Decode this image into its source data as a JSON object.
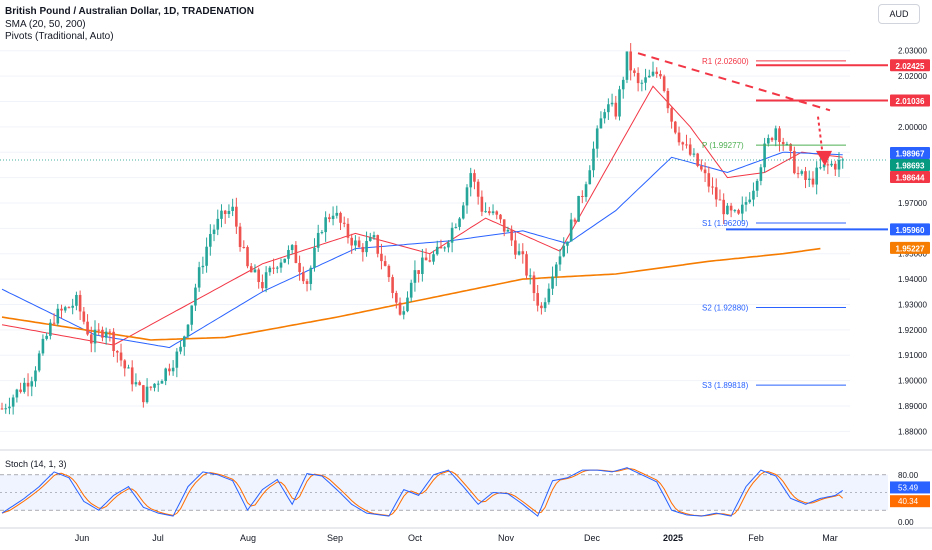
{
  "header": {
    "title": "British Pound / Australian Dollar, 1D, TRADENATION",
    "line2": "SMA (20, 50, 200)",
    "line3": "Pivots (Traditional, Auto)",
    "currency": "AUD"
  },
  "stoch_label": "Stoch (14, 1, 3)",
  "colors": {
    "up": "#26a69a",
    "down": "#ef5350",
    "sma20": "#f23645",
    "sma50": "#2962ff",
    "sma200": "#f57c00",
    "pivot_p": "#4caf50",
    "pivot_r": "#f23645",
    "pivot_s": "#2962ff",
    "stoch_k": "#2962ff",
    "stoch_d": "#ff6d00",
    "grid": "#f0f3fa"
  },
  "chart_data": {
    "type": "candlestick",
    "x_labels": [
      "Jun",
      "Jul",
      "Aug",
      "Sep",
      "Oct",
      "Nov",
      "Dec",
      "2025",
      "Feb",
      "Mar"
    ],
    "y_ticks": [
      "2.03000",
      "2.02000",
      "2.01000",
      "2.00000",
      "1.99000",
      "1.98000",
      "1.97000",
      "1.96000",
      "1.95000",
      "1.94000",
      "1.93000",
      "1.92000",
      "1.91000",
      "1.90000",
      "1.89000",
      "1.88000"
    ],
    "ylim": [
      1.875,
      2.035
    ],
    "price_labels": [
      {
        "text": "2.02425",
        "value": 2.02425,
        "color": "#f23645"
      },
      {
        "text": "2.01036",
        "value": 2.01036,
        "color": "#f23645"
      },
      {
        "text": "1.98967",
        "value": 1.98967,
        "color": "#2962ff"
      },
      {
        "text": "1.98693",
        "value": 1.98693,
        "color": "#089981"
      },
      {
        "text": "1.98644",
        "value": 1.98644,
        "color": "#f23645"
      },
      {
        "text": "1.95960",
        "value": 1.9596,
        "color": "#2962ff"
      },
      {
        "text": "1.95227",
        "value": 1.95227,
        "color": "#f57c00"
      }
    ],
    "pivots": [
      {
        "label": "R1 (2.02600)",
        "value": 2.026,
        "color": "#f23645"
      },
      {
        "label": "P (1.99277)",
        "value": 1.99277,
        "color": "#4caf50"
      },
      {
        "label": "S1 (1.96209)",
        "value": 1.96209,
        "color": "#2962ff"
      },
      {
        "label": "S2 (1.92880)",
        "value": 1.9288,
        "color": "#2962ff"
      },
      {
        "label": "S3 (1.89818)",
        "value": 1.89818,
        "color": "#2962ff"
      }
    ],
    "anchors": {
      "start": "2024-05-13",
      "pts": [
        [
          0,
          1.889
        ],
        [
          8,
          1.902
        ],
        [
          14,
          1.925
        ],
        [
          20,
          1.931
        ],
        [
          24,
          1.916
        ],
        [
          28,
          1.921
        ],
        [
          33,
          1.905
        ],
        [
          38,
          1.894
        ],
        [
          43,
          1.902
        ],
        [
          48,
          1.912
        ],
        [
          52,
          1.937
        ],
        [
          56,
          1.958
        ],
        [
          60,
          1.966
        ],
        [
          62,
          1.967
        ],
        [
          63,
          1.961
        ],
        [
          66,
          1.944
        ],
        [
          70,
          1.938
        ],
        [
          74,
          1.947
        ],
        [
          78,
          1.951
        ],
        [
          82,
          1.939
        ],
        [
          86,
          1.961
        ],
        [
          89,
          1.967
        ],
        [
          92,
          1.959
        ],
        [
          96,
          1.952
        ],
        [
          100,
          1.955
        ],
        [
          104,
          1.941
        ],
        [
          107,
          1.925
        ],
        [
          110,
          1.941
        ],
        [
          114,
          1.947
        ],
        [
          118,
          1.951
        ],
        [
          123,
          1.966
        ],
        [
          126,
          1.982
        ],
        [
          129,
          1.968
        ],
        [
          133,
          1.964
        ],
        [
          136,
          1.958
        ],
        [
          140,
          1.947
        ],
        [
          143,
          1.935
        ],
        [
          145,
          1.928
        ],
        [
          148,
          1.944
        ],
        [
          152,
          1.957
        ],
        [
          156,
          1.974
        ],
        [
          159,
          1.991
        ],
        [
          162,
          2.008
        ],
        [
          165,
          2.006
        ],
        [
          168,
          2.027
        ],
        [
          171,
          2.016
        ],
        [
          174,
          2.019
        ],
        [
          177,
          2.022
        ],
        [
          180,
          2.003
        ],
        [
          183,
          1.993
        ],
        [
          186,
          1.987
        ],
        [
          189,
          1.98
        ],
        [
          192,
          1.972
        ],
        [
          195,
          1.966
        ],
        [
          198,
          1.964
        ],
        [
          202,
          1.977
        ],
        [
          205,
          1.991
        ],
        [
          208,
          2.0
        ],
        [
          211,
          1.991
        ],
        [
          214,
          1.981
        ],
        [
          217,
          1.978
        ],
        [
          220,
          1.983
        ],
        [
          223,
          1.985
        ],
        [
          226,
          1.986
        ]
      ]
    },
    "sma20": [
      [
        0,
        1.922
      ],
      [
        30,
        1.914
      ],
      [
        50,
        1.93
      ],
      [
        70,
        1.946
      ],
      [
        95,
        1.958
      ],
      [
        115,
        1.95
      ],
      [
        130,
        1.964
      ],
      [
        150,
        1.951
      ],
      [
        165,
        1.99
      ],
      [
        175,
        2.016
      ],
      [
        185,
        2.0
      ],
      [
        195,
        1.98
      ],
      [
        205,
        1.982
      ],
      [
        215,
        1.99
      ],
      [
        226,
        1.988
      ]
    ],
    "sma50": [
      [
        0,
        1.936
      ],
      [
        25,
        1.918
      ],
      [
        45,
        1.913
      ],
      [
        70,
        1.935
      ],
      [
        95,
        1.952
      ],
      [
        120,
        1.955
      ],
      [
        140,
        1.959
      ],
      [
        152,
        1.954
      ],
      [
        165,
        1.967
      ],
      [
        180,
        1.988
      ],
      [
        195,
        1.982
      ],
      [
        210,
        1.99
      ],
      [
        226,
        1.989
      ]
    ],
    "sma200": [
      [
        0,
        1.925
      ],
      [
        40,
        1.916
      ],
      [
        60,
        1.917
      ],
      [
        90,
        1.925
      ],
      [
        120,
        1.934
      ],
      [
        140,
        1.94
      ],
      [
        165,
        1.942
      ],
      [
        190,
        1.947
      ],
      [
        210,
        1.95
      ],
      [
        220,
        1.952
      ]
    ],
    "stoch": {
      "labels": [
        "80.00",
        "53.49",
        "40.34",
        "0.00"
      ],
      "k_last": 53.49,
      "d_last": 40.34,
      "k_pts": [
        [
          0,
          15
        ],
        [
          6,
          40
        ],
        [
          10,
          60
        ],
        [
          14,
          85
        ],
        [
          18,
          75
        ],
        [
          22,
          35
        ],
        [
          26,
          20
        ],
        [
          30,
          45
        ],
        [
          34,
          60
        ],
        [
          38,
          25
        ],
        [
          42,
          15
        ],
        [
          46,
          10
        ],
        [
          50,
          60
        ],
        [
          54,
          85
        ],
        [
          58,
          80
        ],
        [
          62,
          70
        ],
        [
          66,
          20
        ],
        [
          70,
          55
        ],
        [
          74,
          72
        ],
        [
          78,
          30
        ],
        [
          82,
          82
        ],
        [
          86,
          78
        ],
        [
          90,
          55
        ],
        [
          94,
          30
        ],
        [
          98,
          15
        ],
        [
          104,
          10
        ],
        [
          108,
          55
        ],
        [
          112,
          45
        ],
        [
          116,
          80
        ],
        [
          120,
          88
        ],
        [
          124,
          60
        ],
        [
          128,
          30
        ],
        [
          132,
          50
        ],
        [
          136,
          48
        ],
        [
          140,
          30
        ],
        [
          144,
          10
        ],
        [
          148,
          70
        ],
        [
          152,
          75
        ],
        [
          156,
          88
        ],
        [
          160,
          88
        ],
        [
          164,
          85
        ],
        [
          168,
          92
        ],
        [
          172,
          80
        ],
        [
          176,
          68
        ],
        [
          180,
          20
        ],
        [
          184,
          12
        ],
        [
          188,
          10
        ],
        [
          192,
          15
        ],
        [
          196,
          10
        ],
        [
          200,
          60
        ],
        [
          204,
          88
        ],
        [
          208,
          78
        ],
        [
          212,
          40
        ],
        [
          216,
          30
        ],
        [
          220,
          40
        ],
        [
          224,
          45
        ],
        [
          226,
          53.49
        ]
      ]
    }
  }
}
